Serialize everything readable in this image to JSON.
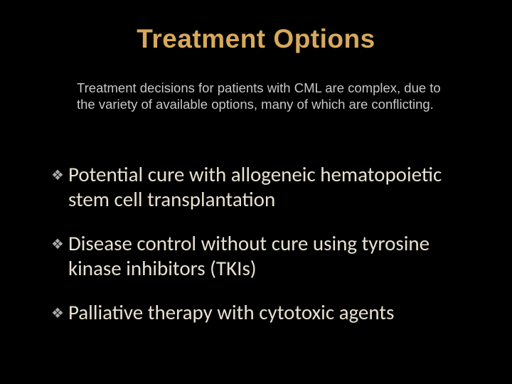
{
  "title": "Treatment Options",
  "intro": "Treatment decisions for patients with CML are complex, due to the variety of available options, many of which are conflicting.",
  "bullets": [
    "Potential cure with allogeneic hematopoietic stem cell transplantation",
    "Disease control without cure using tyrosine kinase inhibitors (TKIs)",
    "Palliative therapy with cytotoxic agents"
  ],
  "styling": {
    "background_color": "#000000",
    "title_color": "#d8a95c",
    "title_fontsize": 37,
    "title_fontweight": 700,
    "title_fontfamily": "Arial",
    "intro_color": "#c8c8c8",
    "intro_fontsize": 18.5,
    "intro_fontfamily": "Arial",
    "bullet_text_color": "#e8e0d0",
    "bullet_text_fontsize": 29,
    "bullet_text_fontfamily": "Calibri",
    "bullet_icon_color": "#a8a8a8",
    "bullet_icon_glyph": "❖",
    "slide_width": 720,
    "slide_height": 540
  }
}
